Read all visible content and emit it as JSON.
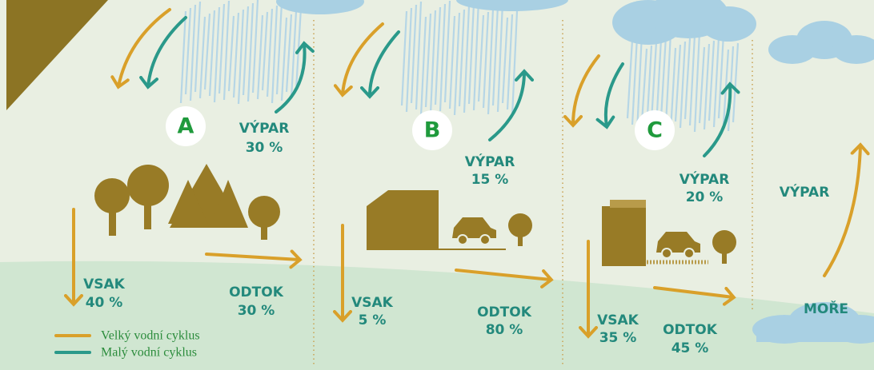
{
  "panels": [
    {
      "label": "A",
      "evaporation": {
        "label": "VÝPAR",
        "value": "30 %"
      },
      "infiltration": {
        "label": "VSAK",
        "value": "40 %"
      },
      "runoff": {
        "label": "ODTOK",
        "value": "30 %"
      }
    },
    {
      "label": "B",
      "evaporation": {
        "label": "VÝPAR",
        "value": "15 %"
      },
      "infiltration": {
        "label": "VSAK",
        "value": "5 %"
      },
      "runoff": {
        "label": "ODTOK",
        "value": "80 %"
      }
    },
    {
      "label": "C",
      "evaporation": {
        "label": "VÝPAR",
        "value": "20 %"
      },
      "infiltration": {
        "label": "VSAK",
        "value": "35 %"
      },
      "runoff": {
        "label": "ODTOK",
        "value": "45 %"
      }
    }
  ],
  "sea": {
    "evaporation": "VÝPAR",
    "label": "MOŘE"
  },
  "legend": {
    "items": [
      "Velký vodní cyklus",
      "Malý vodní cyklus"
    ]
  }
}
